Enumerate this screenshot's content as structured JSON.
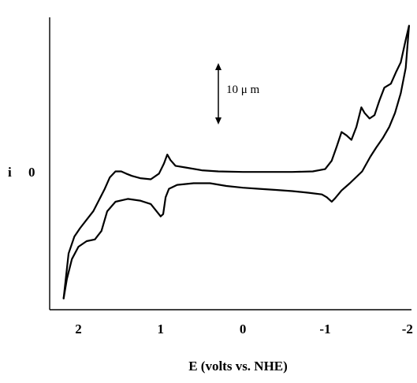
{
  "chart_data": {
    "type": "line",
    "title": "",
    "xlabel": "E (volts vs. NHE)",
    "ylabel": "i",
    "y_zero_label": "0",
    "x_ticks": [
      {
        "value": 2,
        "label": "2"
      },
      {
        "value": 1,
        "label": "1"
      },
      {
        "value": 0,
        "label": "0"
      },
      {
        "value": -1,
        "label": "-1"
      },
      {
        "value": -2,
        "label": "-2"
      }
    ],
    "xlim": [
      2.35,
      -2.05
    ],
    "ylim": [
      -24,
      28
    ],
    "scale_bar": {
      "label": "10 μ m",
      "length": 10
    },
    "grid": false,
    "series": [
      {
        "values": [
          [
            2.18,
            -22
          ],
          [
            2.12,
            -14
          ],
          [
            2.05,
            -11
          ],
          [
            1.98,
            -9.5
          ],
          [
            1.9,
            -8
          ],
          [
            1.82,
            -6.5
          ],
          [
            1.75,
            -4.5
          ],
          [
            1.68,
            -2.5
          ],
          [
            1.62,
            -0.5
          ],
          [
            1.55,
            0.6
          ],
          [
            1.48,
            0.6
          ],
          [
            1.42,
            0.2
          ],
          [
            1.35,
            -0.2
          ],
          [
            1.25,
            -0.6
          ],
          [
            1.12,
            -0.8
          ],
          [
            1.02,
            0.2
          ],
          [
            0.96,
            2.0
          ],
          [
            0.92,
            3.6
          ],
          [
            0.88,
            2.6
          ],
          [
            0.82,
            1.6
          ],
          [
            0.7,
            1.3
          ],
          [
            0.5,
            0.8
          ],
          [
            0.3,
            0.6
          ],
          [
            0.0,
            0.5
          ],
          [
            -0.3,
            0.5
          ],
          [
            -0.6,
            0.5
          ],
          [
            -0.85,
            0.6
          ],
          [
            -1.0,
            1.0
          ],
          [
            -1.08,
            2.5
          ],
          [
            -1.14,
            5.0
          ],
          [
            -1.2,
            7.6
          ],
          [
            -1.26,
            7.0
          ],
          [
            -1.32,
            6.2
          ],
          [
            -1.38,
            8.5
          ],
          [
            -1.44,
            12.0
          ],
          [
            -1.48,
            11.0
          ],
          [
            -1.54,
            10.0
          ],
          [
            -1.6,
            10.6
          ],
          [
            -1.66,
            13.2
          ],
          [
            -1.72,
            15.5
          ],
          [
            -1.8,
            16.2
          ],
          [
            -1.86,
            18.2
          ],
          [
            -1.92,
            20.0
          ],
          [
            -1.98,
            24.0
          ],
          [
            -2.02,
            26.5
          ]
        ]
      },
      {
        "values": [
          [
            -2.02,
            26.5
          ],
          [
            -1.98,
            19.0
          ],
          [
            -1.92,
            14.5
          ],
          [
            -1.85,
            11.0
          ],
          [
            -1.78,
            8.5
          ],
          [
            -1.7,
            6.5
          ],
          [
            -1.62,
            4.8
          ],
          [
            -1.55,
            3.2
          ],
          [
            -1.45,
            0.6
          ],
          [
            -1.3,
            -1.5
          ],
          [
            -1.2,
            -2.8
          ],
          [
            -1.12,
            -4.2
          ],
          [
            -1.08,
            -4.8
          ],
          [
            -1.02,
            -4.0
          ],
          [
            -0.96,
            -3.5
          ],
          [
            -0.8,
            -3.2
          ],
          [
            -0.6,
            -2.9
          ],
          [
            -0.4,
            -2.7
          ],
          [
            -0.2,
            -2.5
          ],
          [
            0.0,
            -2.3
          ],
          [
            0.2,
            -2.0
          ],
          [
            0.4,
            -1.5
          ],
          [
            0.6,
            -1.5
          ],
          [
            0.8,
            -1.8
          ],
          [
            0.9,
            -2.5
          ],
          [
            0.94,
            -4.0
          ],
          [
            0.97,
            -7.0
          ],
          [
            1.0,
            -7.4
          ],
          [
            1.05,
            -6.5
          ],
          [
            1.12,
            -5.2
          ],
          [
            1.25,
            -4.6
          ],
          [
            1.4,
            -4.3
          ],
          [
            1.55,
            -4.8
          ],
          [
            1.65,
            -6.5
          ],
          [
            1.72,
            -10.0
          ],
          [
            1.8,
            -11.5
          ],
          [
            1.9,
            -11.8
          ],
          [
            2.0,
            -12.8
          ],
          [
            2.08,
            -15.0
          ],
          [
            2.14,
            -18.5
          ],
          [
            2.18,
            -22
          ]
        ]
      }
    ]
  }
}
